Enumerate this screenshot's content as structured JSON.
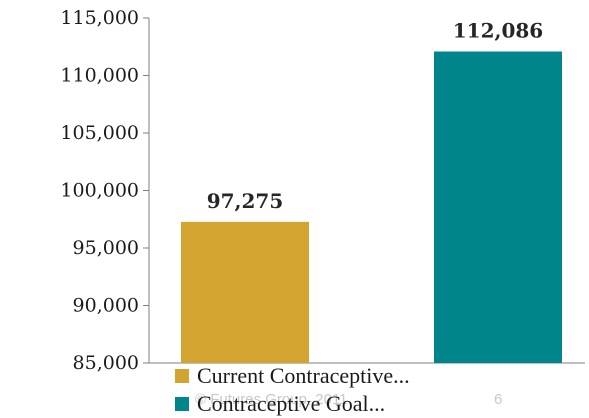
{
  "colors": {
    "current": "#D4A431",
    "goal": "#00858A",
    "axis": "#7f7f7f"
  },
  "footer": {
    "left": "© Futures Group, 2011",
    "page_number": "6"
  },
  "chart_data": {
    "type": "bar",
    "categories": [
      "Current Contraceptive...",
      "Contraceptive Goal..."
    ],
    "values": [
      97275,
      112086
    ],
    "value_labels": [
      "97,275",
      "112,086"
    ],
    "ylim": [
      85000,
      115000
    ],
    "yticks": [
      85000,
      90000,
      95000,
      100000,
      105000,
      110000,
      115000
    ],
    "ytick_labels": [
      "85,000",
      "90,000",
      "95,000",
      "100,000",
      "105,000",
      "110,000",
      "115,000"
    ],
    "legend": [
      {
        "label": "Current Contraceptive...",
        "color": "#D4A431"
      },
      {
        "label": "Contraceptive Goal...",
        "color": "#00858A"
      }
    ],
    "legend_position": "bottom",
    "grid": false
  }
}
